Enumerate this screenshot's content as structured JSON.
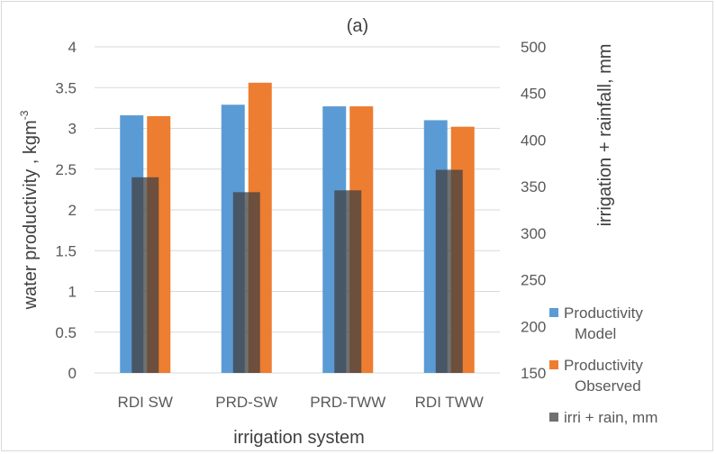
{
  "chart_data": {
    "type": "bar",
    "title": "(a)",
    "xlabel": "irrigation system",
    "ylabel": "water productivity , kgm",
    "ylabel_sup": "-3",
    "y2label": "irrigation + rainfall, mm",
    "categories": [
      "RDI SW",
      "PRD-SW",
      "PRD-TWW",
      "RDI TWW"
    ],
    "ylim": [
      0,
      4
    ],
    "y_ticks": [
      0,
      0.5,
      1,
      1.5,
      2,
      2.5,
      3,
      3.5,
      4
    ],
    "y_tick_labels": [
      "0",
      "0.5",
      "1",
      "1.5",
      "2",
      "2.5",
      "3",
      "3.5",
      "4"
    ],
    "y2lim": [
      150,
      500
    ],
    "y2_ticks": [
      150,
      200,
      250,
      300,
      350,
      400,
      450,
      500
    ],
    "y2_tick_labels": [
      "150",
      "200",
      "250",
      "300",
      "350",
      "400",
      "450",
      "500"
    ],
    "grid": true,
    "legend_position": "right",
    "series": [
      {
        "name": "Productivity Model",
        "legend_lines": [
          "Productivity",
          "Model"
        ],
        "axis": "left",
        "color": "#5b9bd5",
        "values": [
          3.16,
          3.29,
          3.27,
          3.1
        ]
      },
      {
        "name": "Productivity Observed",
        "legend_lines": [
          "Productivity",
          "Observed"
        ],
        "axis": "left",
        "color": "#ed7d31",
        "values": [
          3.15,
          3.56,
          3.27,
          3.02
        ]
      },
      {
        "name": "irri + rain, mm",
        "legend_lines": [
          "irri + rain, mm"
        ],
        "axis": "right",
        "color": "#404040",
        "opacity": 0.75,
        "values": [
          360,
          344,
          346,
          368
        ]
      }
    ]
  }
}
